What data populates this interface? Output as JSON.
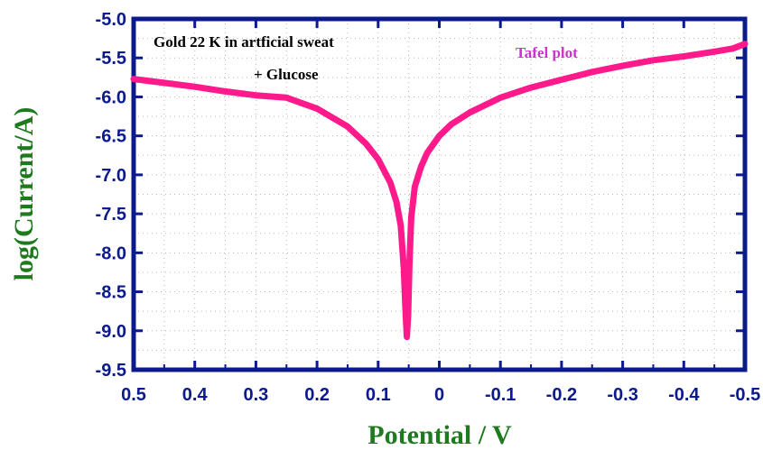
{
  "chart_data": {
    "type": "line",
    "title": "",
    "xlabel": "Potential / V",
    "ylabel": "log(Current/A)",
    "xlim": [
      0.5,
      -0.5
    ],
    "ylim": [
      -9.5,
      -5.0
    ],
    "x_reversed": true,
    "grid": true,
    "x_ticks": [
      0.5,
      0.4,
      0.3,
      0.2,
      0.1,
      0,
      -0.1,
      -0.2,
      -0.3,
      -0.4,
      -0.5
    ],
    "x_tick_labels": [
      "0.5",
      "0.4",
      "0.3",
      "0.2",
      "0.1",
      "0",
      "-0.1",
      "-0.2",
      "-0.3",
      "-0.4",
      "-0.5"
    ],
    "y_ticks": [
      -5.0,
      -5.5,
      -6.0,
      -6.5,
      -7.0,
      -7.5,
      -8.0,
      -8.5,
      -9.0,
      -9.5
    ],
    "y_tick_labels": [
      "-5.0",
      "-5.5",
      "-6.0",
      "-6.5",
      "-7.0",
      "-7.5",
      "-8.0",
      "-8.5",
      "-9.0",
      "-9.5"
    ],
    "annotations": [
      "Gold 22 K in artficial sweat",
      "+ Glucose",
      "Tafel plot"
    ],
    "series": [
      {
        "color": "#ff1a8c",
        "points": [
          [
            0.5,
            -5.77
          ],
          [
            0.45,
            -5.82
          ],
          [
            0.4,
            -5.87
          ],
          [
            0.35,
            -5.93
          ],
          [
            0.3,
            -5.98
          ],
          [
            0.25,
            -6.01
          ],
          [
            0.2,
            -6.15
          ],
          [
            0.15,
            -6.38
          ],
          [
            0.12,
            -6.6
          ],
          [
            0.1,
            -6.8
          ],
          [
            0.08,
            -7.1
          ],
          [
            0.07,
            -7.35
          ],
          [
            0.063,
            -7.65
          ],
          [
            0.058,
            -8.2
          ],
          [
            0.055,
            -8.8
          ],
          [
            0.053,
            -9.08
          ],
          [
            0.051,
            -8.8
          ],
          [
            0.049,
            -8.2
          ],
          [
            0.046,
            -7.55
          ],
          [
            0.04,
            -7.15
          ],
          [
            0.03,
            -6.9
          ],
          [
            0.02,
            -6.72
          ],
          [
            0.0,
            -6.5
          ],
          [
            -0.02,
            -6.35
          ],
          [
            -0.05,
            -6.2
          ],
          [
            -0.1,
            -6.01
          ],
          [
            -0.15,
            -5.88
          ],
          [
            -0.2,
            -5.78
          ],
          [
            -0.25,
            -5.68
          ],
          [
            -0.3,
            -5.6
          ],
          [
            -0.35,
            -5.53
          ],
          [
            -0.4,
            -5.48
          ],
          [
            -0.45,
            -5.42
          ],
          [
            -0.48,
            -5.38
          ],
          [
            -0.5,
            -5.32
          ]
        ]
      }
    ]
  },
  "colors": {
    "frame": "#0b1a8c",
    "tick_labels": "#0b1a8c",
    "axis_titles": "#1f7a1f",
    "curve": "#ff1a8c",
    "annotation_tafel": "#cc33cc",
    "grid": "#b8b8b8"
  }
}
